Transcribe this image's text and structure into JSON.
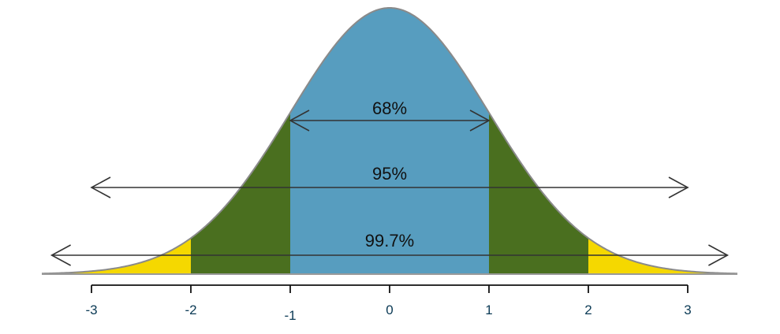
{
  "chart_data": {
    "type": "area",
    "title": "",
    "xlabel": "",
    "ylabel": "",
    "distribution": "standard normal",
    "xlim": [
      -3.5,
      3.5
    ],
    "x_ticks": [
      -3,
      -2,
      -1,
      0,
      1,
      2,
      3
    ],
    "x_tick_labels": [
      "-3",
      "-2",
      "-1",
      "0",
      "1",
      "2",
      "3"
    ],
    "regions": [
      {
        "from": -3.5,
        "to": -2,
        "color": "#f5d800"
      },
      {
        "from": -2,
        "to": -1,
        "color": "#4a6f1f"
      },
      {
        "from": -1,
        "to": 1,
        "color": "#579dbf"
      },
      {
        "from": 1,
        "to": 2,
        "color": "#4a6f1f"
      },
      {
        "from": 2,
        "to": 3.5,
        "color": "#f5d800"
      }
    ],
    "intervals": [
      {
        "label": "68%",
        "from": -1,
        "to": 1
      },
      {
        "label": "95%",
        "from": -2,
        "to": 2
      },
      {
        "label": "99.7%",
        "from": -3,
        "to": 3
      }
    ],
    "curve_color": "#8a8a8a"
  }
}
